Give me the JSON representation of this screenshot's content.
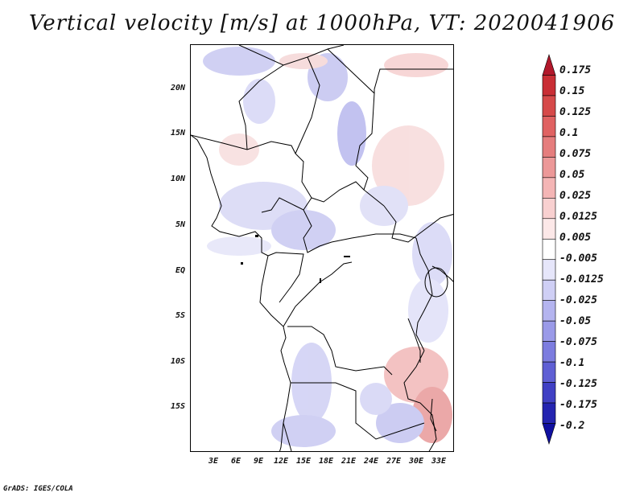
{
  "title": "Vertical velocity [m/s] at 1000hPa, VT: 2020041906",
  "credit": "GrADS: IGES/COLA",
  "map": {
    "region": "Central Africa",
    "lat_range": [
      -20,
      25
    ],
    "lon_range": [
      0,
      35
    ],
    "lat_labels": [
      "20N",
      "15N",
      "10N",
      "5N",
      "EQ",
      "5S",
      "10S",
      "15S"
    ],
    "lon_labels": [
      "3E",
      "6E",
      "9E",
      "12E",
      "15E",
      "18E",
      "21E",
      "24E",
      "27E",
      "30E",
      "33E"
    ]
  },
  "colorbar": {
    "labels": [
      "0.175",
      "0.15",
      "0.125",
      "0.1",
      "0.075",
      "0.05",
      "0.025",
      "0.0125",
      "0.005",
      "-0.005",
      "-0.0125",
      "-0.025",
      "-0.05",
      "-0.075",
      "-0.1",
      "-0.125",
      "-0.175",
      "-0.2"
    ],
    "colors": [
      "#b2182b",
      "#c92e35",
      "#d64a4a",
      "#e06262",
      "#e57d7d",
      "#ec9898",
      "#f4b5b5",
      "#f8d0d0",
      "#fce8e8",
      "#ffffff",
      "#e6e6fa",
      "#cfcff5",
      "#b4b4ef",
      "#9a9ae8",
      "#7c7cdf",
      "#5f5fd4",
      "#4040c4",
      "#2424b0",
      "#1010a0"
    ]
  }
}
